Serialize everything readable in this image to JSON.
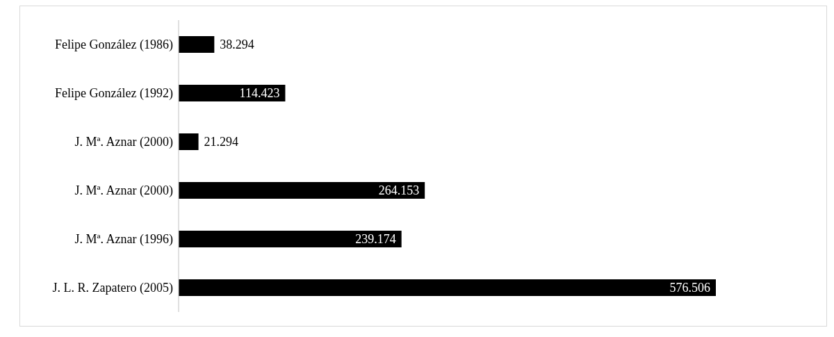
{
  "chart_data": {
    "type": "bar",
    "orientation": "horizontal",
    "categories": [
      "Felipe González (1986)",
      "Felipe González (1992)",
      "J. Mª. Aznar (2000)",
      "J. Mª. Aznar (2000)",
      "J. Mª. Aznar (1996)",
      "J. L. R. Zapatero (2005)"
    ],
    "values": [
      38294,
      114423,
      21294,
      264153,
      239174,
      576506
    ],
    "value_labels": [
      "38.294",
      "114.423",
      "21.294",
      "264.153",
      "239.174",
      "576.506"
    ],
    "color": "#000000"
  }
}
